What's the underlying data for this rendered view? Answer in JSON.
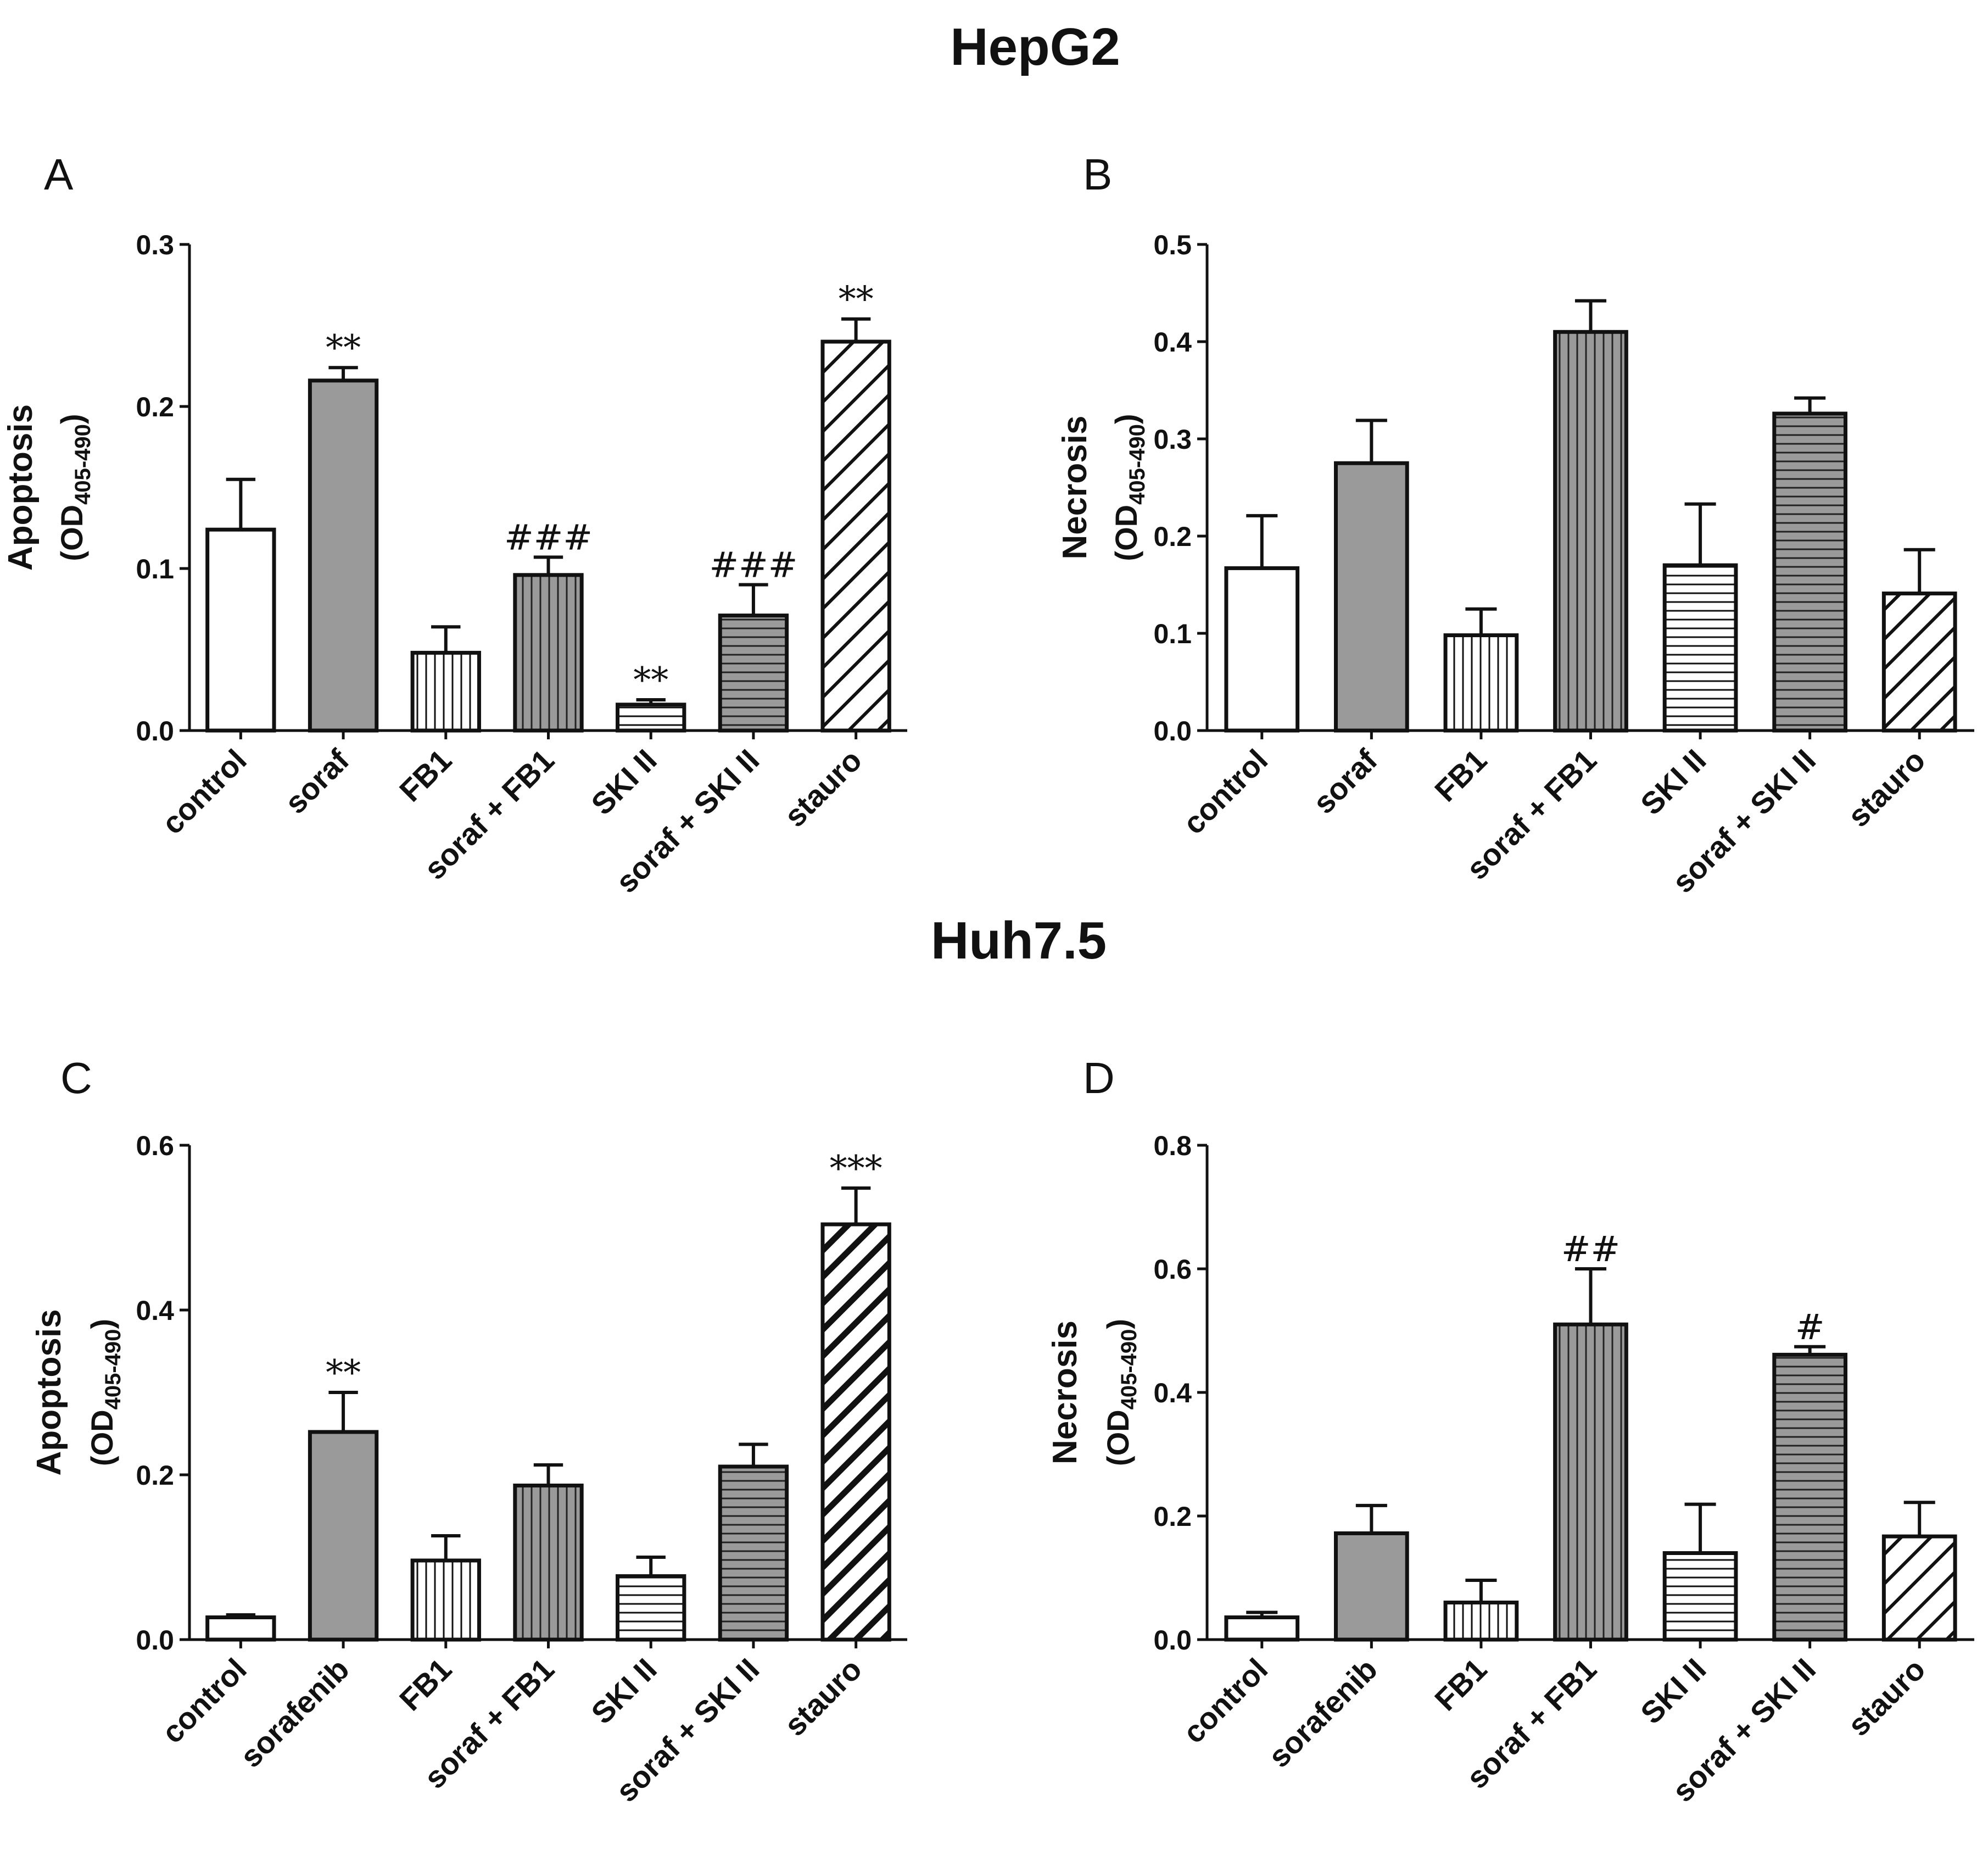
{
  "titles": {
    "top": "HepG2",
    "bottom": "Huh7.5"
  },
  "panels": [
    {
      "letter": "A"
    },
    {
      "letter": "B"
    },
    {
      "letter": "C"
    },
    {
      "letter": "D"
    }
  ],
  "chart_data": [
    {
      "type": "bar",
      "panel": "A",
      "section": "HepG2",
      "ylabel": "Apoptosis",
      "yunit": {
        "main": "(OD",
        "sub": "405-490",
        "close": ")"
      },
      "ylim": [
        0,
        0.3
      ],
      "yticks": [
        "0.0",
        "0.1",
        "0.2",
        "0.3"
      ],
      "ytick_values": [
        0,
        0.1,
        0.2,
        0.3
      ],
      "categories": [
        "control",
        "soraf",
        "FB1",
        "soraf + FB1",
        "SKI II",
        "soraf + SKI II",
        "stauro"
      ],
      "values": [
        0.124,
        0.216,
        0.048,
        0.096,
        0.016,
        0.071,
        0.24
      ],
      "errors": [
        0.031,
        0.008,
        0.016,
        0.011,
        0.003,
        0.019,
        0.014
      ],
      "annotations": [
        "",
        "**",
        "",
        "###",
        "**",
        "###",
        "**"
      ],
      "patterns": [
        "open",
        "solid",
        "vertical",
        "vertical-dark",
        "horizontal",
        "horizontal-dark",
        "diagonal"
      ]
    },
    {
      "type": "bar",
      "panel": "B",
      "section": "HepG2",
      "ylabel": "Necrosis",
      "yunit": {
        "main": "(OD",
        "sub": "405-490",
        "close": ")"
      },
      "ylim": [
        0,
        0.5
      ],
      "yticks": [
        "0.0",
        "0.1",
        "0.2",
        "0.3",
        "0.4",
        "0.5"
      ],
      "ytick_values": [
        0,
        0.1,
        0.2,
        0.3,
        0.4,
        0.5
      ],
      "categories": [
        "control",
        "soraf",
        "FB1",
        "soraf + FB1",
        "SKI II",
        "soraf + SKI II",
        "stauro"
      ],
      "values": [
        0.167,
        0.275,
        0.098,
        0.41,
        0.17,
        0.326,
        0.141
      ],
      "errors": [
        0.054,
        0.044,
        0.027,
        0.032,
        0.063,
        0.016,
        0.045
      ],
      "annotations": [
        "",
        "",
        "",
        "",
        "",
        "",
        ""
      ],
      "patterns": [
        "open",
        "solid",
        "vertical",
        "vertical-dark",
        "horizontal",
        "horizontal-dark",
        "diagonal"
      ]
    },
    {
      "type": "bar",
      "panel": "C",
      "section": "Huh7.5",
      "ylabel": "Apoptosis",
      "yunit": {
        "main": "(OD",
        "sub": "405-490",
        "close": ")"
      },
      "ylim": [
        0,
        0.6
      ],
      "yticks": [
        "0.0",
        "0.2",
        "0.4",
        "0.6"
      ],
      "ytick_values": [
        0,
        0.2,
        0.4,
        0.6
      ],
      "categories": [
        "control",
        "sorafenib",
        "FB1",
        "soraf + FB1",
        "SKI II",
        "soraf + SKI II",
        "stauro"
      ],
      "values": [
        0.027,
        0.252,
        0.096,
        0.187,
        0.077,
        0.21,
        0.504
      ],
      "errors": [
        0.003,
        0.048,
        0.03,
        0.025,
        0.023,
        0.027,
        0.044
      ],
      "annotations": [
        "",
        "**",
        "",
        "",
        "",
        "",
        "***"
      ],
      "patterns": [
        "open",
        "solid",
        "vertical",
        "vertical-dark",
        "horizontal",
        "horizontal-dark",
        "diagonal-bold"
      ]
    },
    {
      "type": "bar",
      "panel": "D",
      "section": "Huh7.5",
      "ylabel": "Necrosis",
      "yunit": {
        "main": "(OD",
        "sub": "405-490",
        "close": ")"
      },
      "ylim": [
        0,
        0.8
      ],
      "yticks": [
        "0.0",
        "0.2",
        "0.4",
        "0.6",
        "0.8"
      ],
      "ytick_values": [
        0,
        0.2,
        0.4,
        0.6,
        0.8
      ],
      "categories": [
        "control",
        "sorafenib",
        "FB1",
        "soraf + FB1",
        "SKI II",
        "soraf + SKI II",
        "stauro"
      ],
      "values": [
        0.036,
        0.172,
        0.06,
        0.51,
        0.14,
        0.461,
        0.167
      ],
      "errors": [
        0.008,
        0.045,
        0.036,
        0.09,
        0.079,
        0.013,
        0.055
      ],
      "annotations": [
        "",
        "",
        "",
        "##",
        "",
        "#",
        ""
      ],
      "patterns": [
        "open",
        "solid",
        "vertical",
        "vertical-dark",
        "horizontal",
        "horizontal-dark",
        "diagonal"
      ]
    }
  ]
}
